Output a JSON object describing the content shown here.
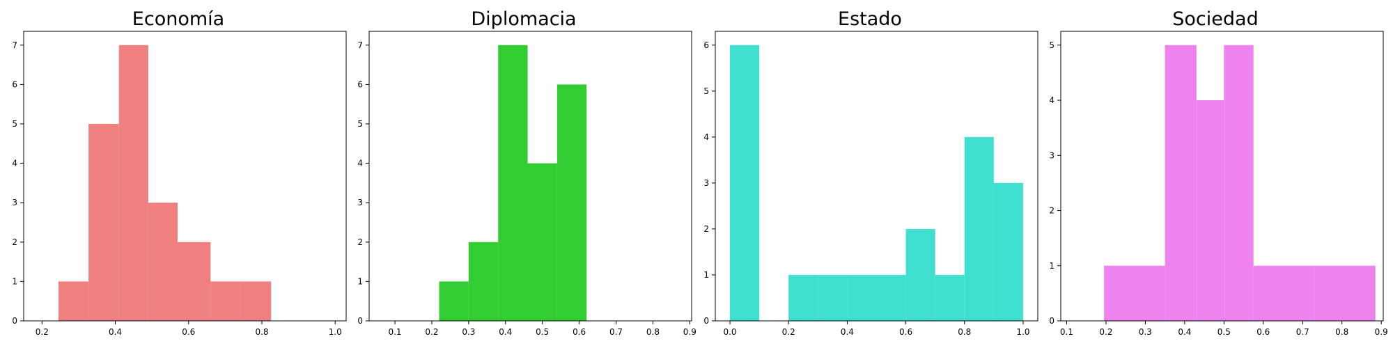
{
  "chart_data": [
    {
      "type": "histogram",
      "title": "Economía",
      "color": "#f08080",
      "xlim": [
        0.15,
        1.03
      ],
      "ylim": [
        0,
        7.35
      ],
      "xticks": [
        0.2,
        0.4,
        0.6,
        0.8,
        1.0
      ],
      "xtick_labels": [
        "0.2",
        "0.4",
        "0.6",
        "0.8",
        "1.0"
      ],
      "yticks": [
        0,
        1,
        2,
        3,
        4,
        5,
        6,
        7
      ],
      "bins": [
        {
          "x0": 0.245,
          "x1": 0.327,
          "count": 1
        },
        {
          "x0": 0.327,
          "x1": 0.41,
          "count": 5
        },
        {
          "x0": 0.41,
          "x1": 0.49,
          "count": 7
        },
        {
          "x0": 0.49,
          "x1": 0.57,
          "count": 3
        },
        {
          "x0": 0.57,
          "x1": 0.66,
          "count": 2
        },
        {
          "x0": 0.66,
          "x1": 0.74,
          "count": 1
        },
        {
          "x0": 0.74,
          "x1": 0.825,
          "count": 1
        }
      ]
    },
    {
      "type": "histogram",
      "title": "Diplomacia",
      "color": "#32cd32",
      "xlim": [
        0.03,
        0.905
      ],
      "ylim": [
        0,
        7.35
      ],
      "xticks": [
        0.1,
        0.2,
        0.3,
        0.4,
        0.5,
        0.6,
        0.7,
        0.8,
        0.9
      ],
      "xtick_labels": [
        "0.1",
        "0.2",
        "0.3",
        "0.4",
        "0.5",
        "0.6",
        "0.7",
        "0.8",
        "0.9"
      ],
      "yticks": [
        0,
        1,
        2,
        3,
        4,
        5,
        6,
        7
      ],
      "bins": [
        {
          "x0": 0.22,
          "x1": 0.3,
          "count": 1
        },
        {
          "x0": 0.3,
          "x1": 0.38,
          "count": 2
        },
        {
          "x0": 0.38,
          "x1": 0.46,
          "count": 7
        },
        {
          "x0": 0.46,
          "x1": 0.54,
          "count": 4
        },
        {
          "x0": 0.54,
          "x1": 0.62,
          "count": 6
        }
      ]
    },
    {
      "type": "histogram",
      "title": "Estado",
      "color": "#40e0d0",
      "xlim": [
        -0.05,
        1.05
      ],
      "ylim": [
        0,
        6.3
      ],
      "xticks": [
        0.0,
        0.2,
        0.4,
        0.6,
        0.8,
        1.0
      ],
      "xtick_labels": [
        "0.0",
        "0.2",
        "0.4",
        "0.6",
        "0.8",
        "1.0"
      ],
      "yticks": [
        0,
        1,
        2,
        3,
        4,
        5,
        6
      ],
      "bins": [
        {
          "x0": 0.0,
          "x1": 0.1,
          "count": 6
        },
        {
          "x0": 0.1,
          "x1": 0.2,
          "count": 0
        },
        {
          "x0": 0.2,
          "x1": 0.3,
          "count": 1
        },
        {
          "x0": 0.3,
          "x1": 0.4,
          "count": 1
        },
        {
          "x0": 0.4,
          "x1": 0.5,
          "count": 1
        },
        {
          "x0": 0.5,
          "x1": 0.6,
          "count": 1
        },
        {
          "x0": 0.6,
          "x1": 0.7,
          "count": 2
        },
        {
          "x0": 0.7,
          "x1": 0.8,
          "count": 1
        },
        {
          "x0": 0.8,
          "x1": 0.9,
          "count": 4
        },
        {
          "x0": 0.9,
          "x1": 1.0,
          "count": 3
        }
      ]
    },
    {
      "type": "histogram",
      "title": "Sociedad",
      "color": "#ee82ee",
      "xlim": [
        0.085,
        0.905
      ],
      "ylim": [
        0,
        5.25
      ],
      "xticks": [
        0.1,
        0.2,
        0.3,
        0.4,
        0.5,
        0.6,
        0.7,
        0.8,
        0.9
      ],
      "xtick_labels": [
        "0.1",
        "0.2",
        "0.3",
        "0.4",
        "0.5",
        "0.6",
        "0.7",
        "0.8",
        "0.9"
      ],
      "yticks": [
        0,
        1,
        2,
        3,
        4,
        5
      ],
      "bins": [
        {
          "x0": 0.195,
          "x1": 0.35,
          "count": 1
        },
        {
          "x0": 0.35,
          "x1": 0.43,
          "count": 5
        },
        {
          "x0": 0.43,
          "x1": 0.5,
          "count": 4
        },
        {
          "x0": 0.5,
          "x1": 0.575,
          "count": 5
        },
        {
          "x0": 0.575,
          "x1": 0.73,
          "count": 1
        },
        {
          "x0": 0.73,
          "x1": 0.885,
          "count": 1
        }
      ]
    }
  ]
}
